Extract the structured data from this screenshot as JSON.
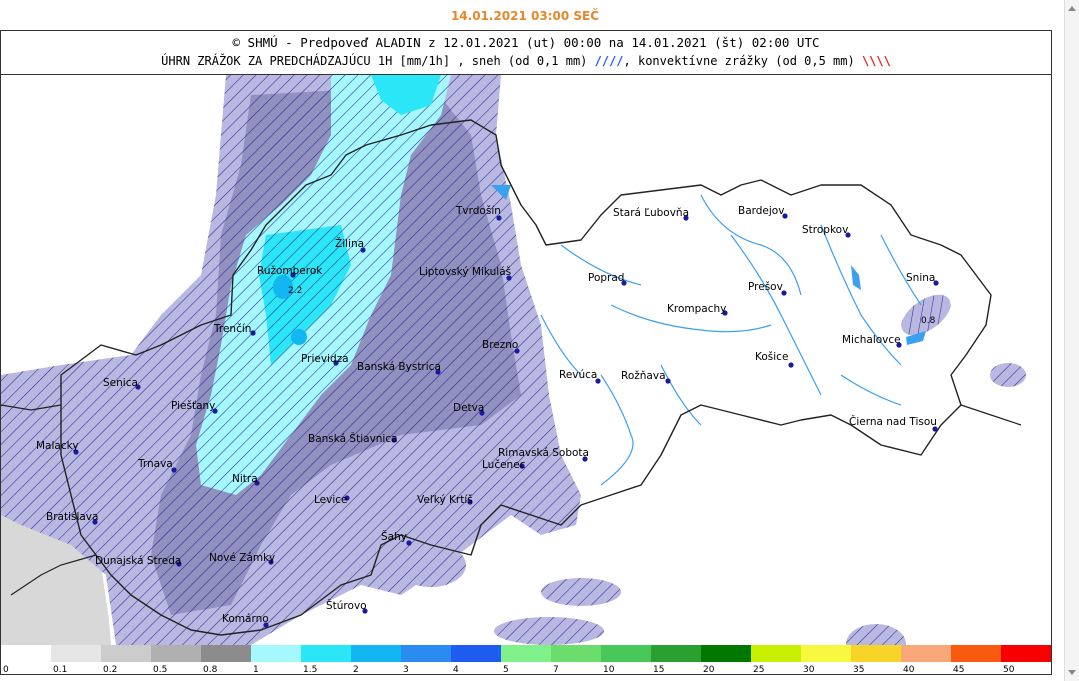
{
  "valid_time": "14.01.2021 03:00 SEČ",
  "header": {
    "line1": "© SHMÚ - Predpoveď ALADIN z 12.01.2021 (ut) 00:00 na 14.01.2021 (št) 02:00 UTC",
    "line2_main": "ÚHRN ZRÁŽOK ZA PREDCHÁDZAJÚCU 1H [mm/1h] , sneh (od 0,1 mm) ",
    "snow_symbol": "////",
    "line2_conv": ", konvektívne zrážky (od 0,5 mm) ",
    "conv_symbol": "\\\\\\\\"
  },
  "cities": [
    {
      "name": "Stará Ľubovňa"
    },
    {
      "name": "Bardejov"
    },
    {
      "name": "Tvrdošín"
    },
    {
      "name": "Stropkov"
    },
    {
      "name": "Žilina"
    },
    {
      "name": "Ružomberok"
    },
    {
      "name": "Liptovský Mikuláš"
    },
    {
      "name": "Poprad"
    },
    {
      "name": "Snina"
    },
    {
      "name": "Prešov"
    },
    {
      "name": "Krompachy"
    },
    {
      "name": "Trenčín"
    },
    {
      "name": "Michalovce"
    },
    {
      "name": "Brezno"
    },
    {
      "name": "Prievidza"
    },
    {
      "name": "Košice"
    },
    {
      "name": "Banská Bystrica"
    },
    {
      "name": "Revúca"
    },
    {
      "name": "Rožňava"
    },
    {
      "name": "Senica"
    },
    {
      "name": "Piešťany"
    },
    {
      "name": "Detva"
    },
    {
      "name": "Čierna nad Tisou"
    },
    {
      "name": "Malacky"
    },
    {
      "name": "Banská Štiavnica"
    },
    {
      "name": "Rimavská Sobota"
    },
    {
      "name": "Trnava"
    },
    {
      "name": "Lučenec"
    },
    {
      "name": "Nitra"
    },
    {
      "name": "Levice"
    },
    {
      "name": "Veľký Krtíš"
    },
    {
      "name": "Bratislava"
    },
    {
      "name": "Šahy"
    },
    {
      "name": "Dunajská Streda"
    },
    {
      "name": "Nové Zámky"
    },
    {
      "name": "Štúrovo"
    },
    {
      "name": "Komárno"
    }
  ],
  "value_labels": [
    "2.2",
    "0.8"
  ],
  "legend": [
    {
      "label": "0",
      "color": "#ffffff"
    },
    {
      "label": "0.1",
      "color": "#e6e6e6"
    },
    {
      "label": "0.2",
      "color": "#cccccc"
    },
    {
      "label": "0.5",
      "color": "#b0b0b0"
    },
    {
      "label": "0.8",
      "color": "#8c8c8c"
    },
    {
      "label": "1",
      "color": "#a6f8ff"
    },
    {
      "label": "1.5",
      "color": "#2be6f6"
    },
    {
      "label": "2",
      "color": "#12b6f0"
    },
    {
      "label": "3",
      "color": "#2a8cf0"
    },
    {
      "label": "4",
      "color": "#1e5cf0"
    },
    {
      "label": "5",
      "color": "#80f08a"
    },
    {
      "label": "7",
      "color": "#6cdc6c"
    },
    {
      "label": "10",
      "color": "#48c85a"
    },
    {
      "label": "15",
      "color": "#2aa030"
    },
    {
      "label": "20",
      "color": "#007800"
    },
    {
      "label": "25",
      "color": "#c8f000"
    },
    {
      "label": "30",
      "color": "#f8f840"
    },
    {
      "label": "35",
      "color": "#f8d428"
    },
    {
      "label": "40",
      "color": "#f8a878"
    },
    {
      "label": "45",
      "color": "#f85a10"
    },
    {
      "label": "50",
      "color": "#f80000"
    }
  ],
  "colors": {
    "shade_light": "#b4b4dc",
    "shade_mid": "#9a9ac8",
    "shade_dark": "#8080aa",
    "hatch": "#2a2a9a",
    "cyan": "#a6f8ff",
    "cyan_mid": "#2be6f6",
    "river": "#3aa0f0",
    "border": "#222222",
    "city_dot": "#1a1aa0"
  }
}
